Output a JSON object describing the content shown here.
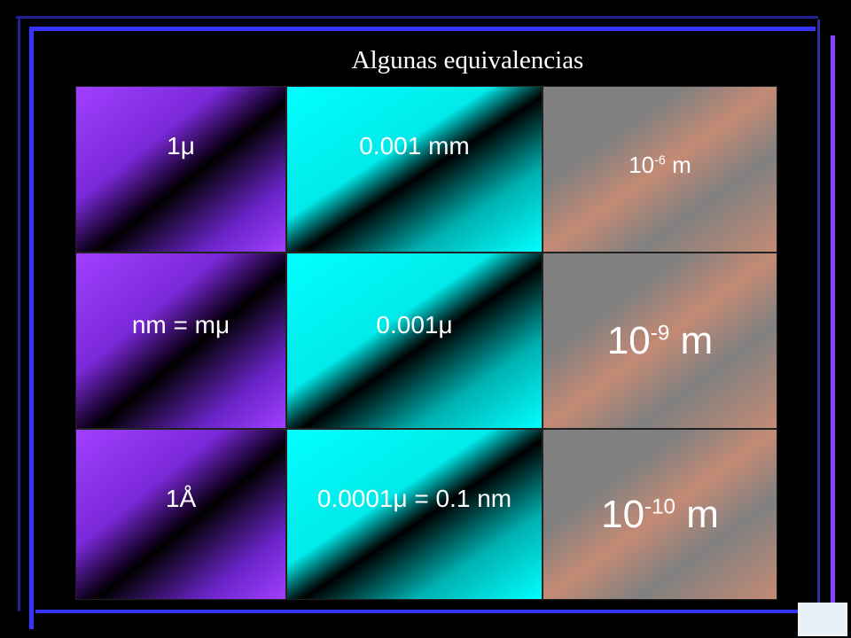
{
  "title": "Algunas equivalencias",
  "table": {
    "rows": [
      [
        "1μ",
        "0.001 mm",
        {
          "base": "10",
          "exp": "-6",
          "unit": "m"
        }
      ],
      [
        "nm = mμ",
        "0.001μ",
        {
          "base": "10",
          "exp": "-9",
          "unit": "m"
        }
      ],
      [
        "1Å",
        "0.0001μ = 0.1 nm",
        {
          "base": "10",
          "exp": "-10",
          "unit": "m"
        }
      ]
    ]
  }
}
